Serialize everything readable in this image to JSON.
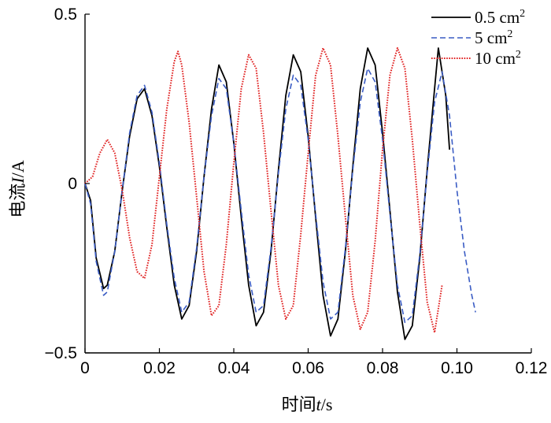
{
  "chart_data": {
    "type": "line",
    "title": "",
    "xlabel_prefix": "时间",
    "xlabel_var": "t",
    "xlabel_unit": "/s",
    "ylabel_prefix": "电流",
    "ylabel_var": "I",
    "ylabel_unit": "/A",
    "xlim": [
      0,
      0.12
    ],
    "ylim": [
      -0.5,
      0.5
    ],
    "x_ticks": [
      0,
      0.02,
      0.04,
      0.06,
      0.08,
      0.1,
      0.12
    ],
    "x_tick_labels": [
      "0",
      "0.02",
      "0.04",
      "0.06",
      "0.08",
      "0.10",
      "0.12"
    ],
    "y_ticks": [
      -0.5,
      0,
      0.5
    ],
    "y_tick_labels": [
      "−0.5",
      "0",
      "0.5"
    ],
    "grid": false,
    "legend_position": "top-right",
    "series": [
      {
        "name": "0.5 cm",
        "superscript": "2",
        "color": "#000000",
        "dash": "solid",
        "x": [
          0,
          0.0015,
          0.003,
          0.005,
          0.006,
          0.008,
          0.01,
          0.012,
          0.014,
          0.016,
          0.018,
          0.02,
          0.022,
          0.024,
          0.026,
          0.028,
          0.03,
          0.032,
          0.034,
          0.036,
          0.038,
          0.04,
          0.042,
          0.044,
          0.046,
          0.048,
          0.05,
          0.052,
          0.054,
          0.056,
          0.058,
          0.06,
          0.062,
          0.064,
          0.066,
          0.068,
          0.07,
          0.072,
          0.074,
          0.076,
          0.078,
          0.08,
          0.082,
          0.084,
          0.086,
          0.088,
          0.09,
          0.092,
          0.094,
          0.095,
          0.097,
          0.098
        ],
        "y": [
          0,
          -0.05,
          -0.22,
          -0.31,
          -0.3,
          -0.2,
          -0.02,
          0.14,
          0.25,
          0.28,
          0.2,
          0.05,
          -0.13,
          -0.3,
          -0.4,
          -0.36,
          -0.2,
          0.02,
          0.22,
          0.35,
          0.3,
          0.12,
          -0.1,
          -0.3,
          -0.42,
          -0.38,
          -0.2,
          0.04,
          0.26,
          0.38,
          0.33,
          0.14,
          -0.1,
          -0.33,
          -0.45,
          -0.4,
          -0.2,
          0.05,
          0.28,
          0.4,
          0.35,
          0.15,
          -0.08,
          -0.32,
          -0.46,
          -0.42,
          -0.22,
          0.04,
          0.28,
          0.4,
          0.26,
          0.1
        ]
      },
      {
        "name": "5 cm",
        "superscript": "2",
        "color": "#3a5cc4",
        "dash": "dashed",
        "x": [
          0,
          0.0015,
          0.003,
          0.005,
          0.006,
          0.008,
          0.01,
          0.012,
          0.014,
          0.016,
          0.018,
          0.02,
          0.022,
          0.024,
          0.026,
          0.028,
          0.03,
          0.032,
          0.034,
          0.036,
          0.038,
          0.04,
          0.042,
          0.044,
          0.046,
          0.048,
          0.05,
          0.052,
          0.054,
          0.056,
          0.058,
          0.06,
          0.062,
          0.064,
          0.066,
          0.068,
          0.07,
          0.072,
          0.074,
          0.076,
          0.078,
          0.08,
          0.082,
          0.084,
          0.086,
          0.088,
          0.09,
          0.092,
          0.094,
          0.096,
          0.098,
          0.1,
          0.102,
          0.104,
          0.105
        ],
        "y": [
          0,
          -0.06,
          -0.23,
          -0.33,
          -0.32,
          -0.2,
          -0.02,
          0.15,
          0.26,
          0.29,
          0.21,
          0.06,
          -0.12,
          -0.28,
          -0.38,
          -0.35,
          -0.19,
          0.02,
          0.2,
          0.31,
          0.28,
          0.12,
          -0.08,
          -0.27,
          -0.38,
          -0.36,
          -0.19,
          0.03,
          0.22,
          0.32,
          0.29,
          0.13,
          -0.09,
          -0.29,
          -0.4,
          -0.38,
          -0.19,
          0.04,
          0.24,
          0.34,
          0.3,
          0.13,
          -0.09,
          -0.3,
          -0.41,
          -0.39,
          -0.21,
          0.03,
          0.24,
          0.33,
          0.2,
          -0.02,
          -0.2,
          -0.33,
          -0.38
        ]
      },
      {
        "name": "10 cm",
        "superscript": "2",
        "color": "#e02020",
        "dash": "dotted",
        "x": [
          0,
          0.002,
          0.004,
          0.006,
          0.008,
          0.01,
          0.012,
          0.014,
          0.016,
          0.018,
          0.02,
          0.022,
          0.024,
          0.025,
          0.026,
          0.028,
          0.03,
          0.032,
          0.034,
          0.036,
          0.038,
          0.04,
          0.042,
          0.044,
          0.046,
          0.048,
          0.05,
          0.052,
          0.054,
          0.056,
          0.058,
          0.06,
          0.062,
          0.064,
          0.066,
          0.068,
          0.07,
          0.072,
          0.074,
          0.076,
          0.078,
          0.08,
          0.082,
          0.084,
          0.086,
          0.088,
          0.09,
          0.092,
          0.094,
          0.096
        ],
        "y": [
          0,
          0.02,
          0.09,
          0.13,
          0.09,
          -0.02,
          -0.16,
          -0.26,
          -0.28,
          -0.18,
          0.02,
          0.22,
          0.36,
          0.39,
          0.35,
          0.18,
          -0.04,
          -0.26,
          -0.39,
          -0.36,
          -0.18,
          0.06,
          0.28,
          0.38,
          0.34,
          0.15,
          -0.08,
          -0.3,
          -0.4,
          -0.36,
          -0.15,
          0.09,
          0.32,
          0.4,
          0.35,
          0.14,
          -0.1,
          -0.33,
          -0.43,
          -0.38,
          -0.17,
          0.1,
          0.32,
          0.4,
          0.34,
          0.13,
          -0.12,
          -0.35,
          -0.44,
          -0.3
        ]
      }
    ]
  }
}
